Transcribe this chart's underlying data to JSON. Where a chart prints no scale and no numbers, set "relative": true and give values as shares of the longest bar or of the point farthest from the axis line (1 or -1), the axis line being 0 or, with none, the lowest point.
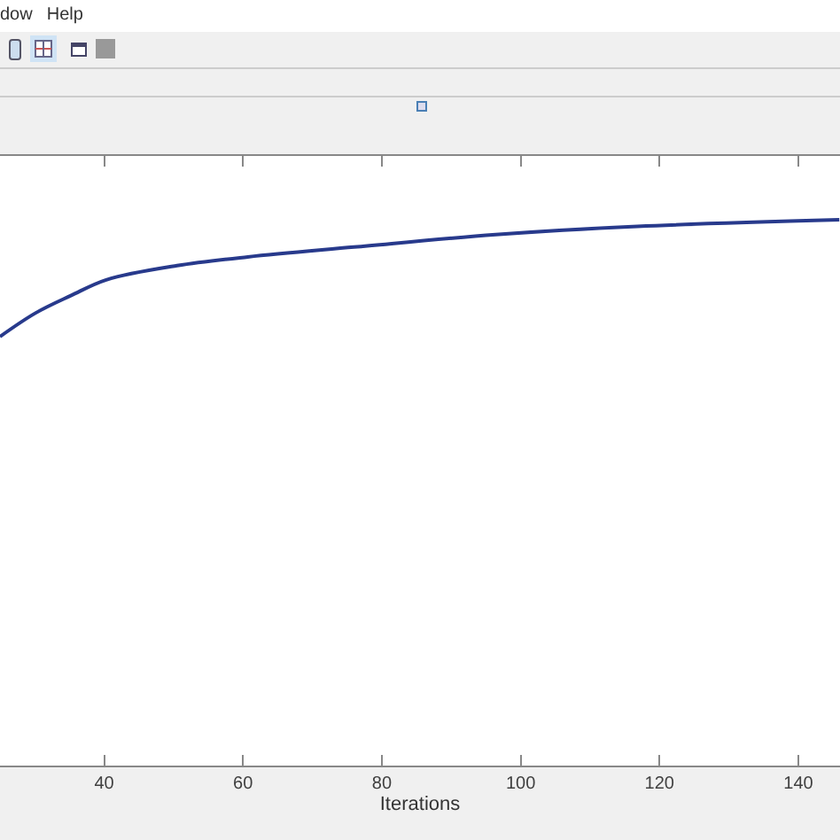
{
  "chart_data": {
    "type": "line",
    "xlabel": "Iterations",
    "relative": true,
    "annotations": [
      "dow",
      "Help"
    ],
    "xlim": [
      25,
      146
    ],
    "xticks": [
      40,
      60,
      80,
      100,
      120,
      140
    ],
    "series": [
      {
        "color": "#283a8c",
        "x": [
          25,
          30.1,
          35.2,
          40.3,
          50.5,
          60.7,
          76,
          96.4,
          116.8,
          145.9
        ],
        "values": [
          0.786,
          0.829,
          0.861,
          0.89,
          0.916,
          0.932,
          0.95,
          0.973,
          0.988,
          1
        ]
      }
    ],
    "grid": false,
    "marker": "none",
    "line_style": "solid"
  }
}
